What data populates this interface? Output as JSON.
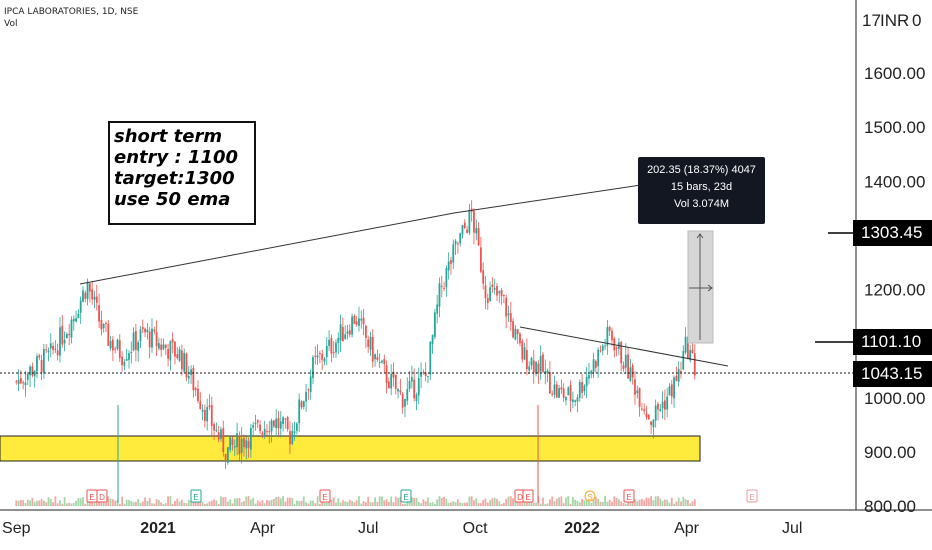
{
  "header": {
    "symbol_line": "IPCA LABORATORIES, 1D, NSE",
    "vol_label": "Vol"
  },
  "currency_label": "INR",
  "note": {
    "lines": [
      "short term",
      "entry : 1100",
      "target:1300",
      "use 50 ema"
    ]
  },
  "tooltip": {
    "line1": "202.35 (18.37%) 4047",
    "line2": "15 bars, 23d",
    "line3": "Vol 3.074M"
  },
  "price_tags": {
    "target": "1303.45",
    "entry": "1101.10",
    "last": "1043.15"
  },
  "colors": {
    "up": "#26a69a",
    "down": "#ef5350",
    "zone_fill": "#ffeb3b",
    "tag_bg": "#000000"
  },
  "chart_data": {
    "type": "candlestick",
    "y_axis_ticks": [
      "1600.00",
      "1500.00",
      "1400.00",
      "1300.00",
      "1200.00",
      "1100.00",
      "1000.00",
      "900.00",
      "800.00"
    ],
    "x_axis_ticks": [
      {
        "label": "Sep",
        "bold": false
      },
      {
        "label": "2021",
        "bold": true
      },
      {
        "label": "Apr",
        "bold": false
      },
      {
        "label": "Jul",
        "bold": false
      },
      {
        "label": "Oct",
        "bold": false
      },
      {
        "label": "2022",
        "bold": true
      },
      {
        "label": "Apr",
        "bold": false
      },
      {
        "label": "Jul",
        "bold": false
      }
    ],
    "ylim": [
      800,
      1700
    ],
    "last_price": 1043.15,
    "support_zone": [
      880,
      928
    ],
    "levels": {
      "target": 1303.45,
      "entry": 1101.1
    },
    "price_path": [
      [
        "2020-09-01",
        1030
      ],
      [
        "2020-10-01",
        1080
      ],
      [
        "2020-10-20",
        1150
      ],
      [
        "2020-11-01",
        1210
      ],
      [
        "2020-11-15",
        1120
      ],
      [
        "2020-12-01",
        1080
      ],
      [
        "2020-12-20",
        1120
      ],
      [
        "2021-01-01",
        1100
      ],
      [
        "2021-01-20",
        1080
      ],
      [
        "2021-02-10",
        980
      ],
      [
        "2021-03-01",
        900
      ],
      [
        "2021-03-20",
        930
      ],
      [
        "2021-04-10",
        960
      ],
      [
        "2021-04-25",
        930
      ],
      [
        "2021-05-15",
        1060
      ],
      [
        "2021-06-01",
        1100
      ],
      [
        "2021-06-20",
        1150
      ],
      [
        "2021-07-10",
        1060
      ],
      [
        "2021-07-30",
        1000
      ],
      [
        "2021-08-20",
        1040
      ],
      [
        "2021-09-01",
        1200
      ],
      [
        "2021-09-15",
        1280
      ],
      [
        "2021-09-28",
        1340
      ],
      [
        "2021-10-10",
        1200
      ],
      [
        "2021-10-25",
        1180
      ],
      [
        "2021-11-10",
        1080
      ],
      [
        "2021-11-25",
        1060
      ],
      [
        "2021-12-10",
        1010
      ],
      [
        "2021-12-25",
        1000
      ],
      [
        "2022-01-10",
        1060
      ],
      [
        "2022-01-25",
        1120
      ],
      [
        "2022-02-10",
        1050
      ],
      [
        "2022-03-01",
        960
      ],
      [
        "2022-03-15",
        1000
      ],
      [
        "2022-03-25",
        1040
      ],
      [
        "2022-04-01",
        1100
      ],
      [
        "2022-04-10",
        1043
      ]
    ]
  }
}
